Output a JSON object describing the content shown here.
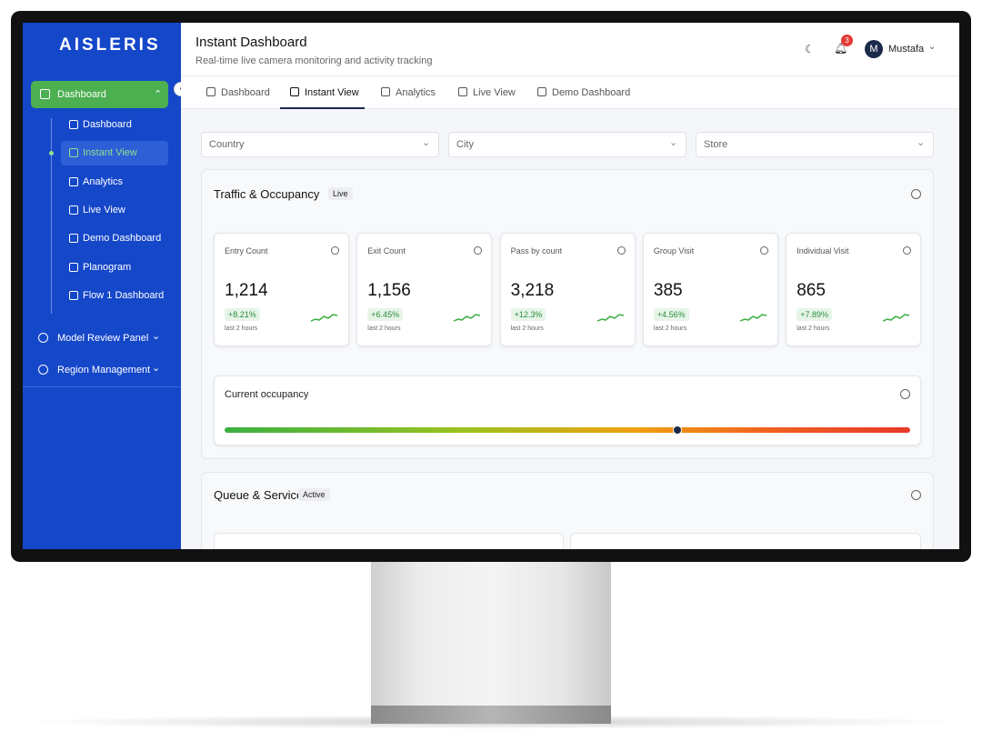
{
  "brand": "AISLERIS",
  "sidebar": {
    "main": "Dashboard",
    "sub": [
      "Dashboard",
      "Instant View",
      "Analytics",
      "Live View",
      "Demo Dashboard",
      "Planogram",
      "Flow 1 Dashboard"
    ],
    "groups": [
      "Model Review Panel",
      "Region Management"
    ]
  },
  "header": {
    "title": "Instant Dashboard",
    "subtitle": "Real-time live camera monitoring and activity tracking",
    "notifications": "3",
    "avatar": "M",
    "user": "Mustafa"
  },
  "tabs": [
    "Dashboard",
    "Instant View",
    "Analytics",
    "Live View",
    "Demo Dashboard"
  ],
  "filters": [
    "Country",
    "City",
    "Store"
  ],
  "traffic": {
    "title": "Traffic & Occupancy",
    "badge": "Live",
    "cards": [
      {
        "label": "Entry Count",
        "value": "1,214",
        "change": "+8.21%",
        "period": "last 2 hours"
      },
      {
        "label": "Exit Count",
        "value": "1,156",
        "change": "+6.45%",
        "period": "last 2 hours"
      },
      {
        "label": "Pass by count",
        "value": "3,218",
        "change": "+12.3%",
        "period": "last 2 hours"
      },
      {
        "label": "Group Visit",
        "value": "385",
        "change": "+4.56%",
        "period": "last 2 hours"
      },
      {
        "label": "Individual Visit",
        "value": "865",
        "change": "+7.89%",
        "period": "last 2 hours"
      }
    ],
    "occupancy": {
      "title": "Current occupancy",
      "level": 66
    }
  },
  "queue": {
    "title": "Queue & Service",
    "badge": "Active"
  }
}
